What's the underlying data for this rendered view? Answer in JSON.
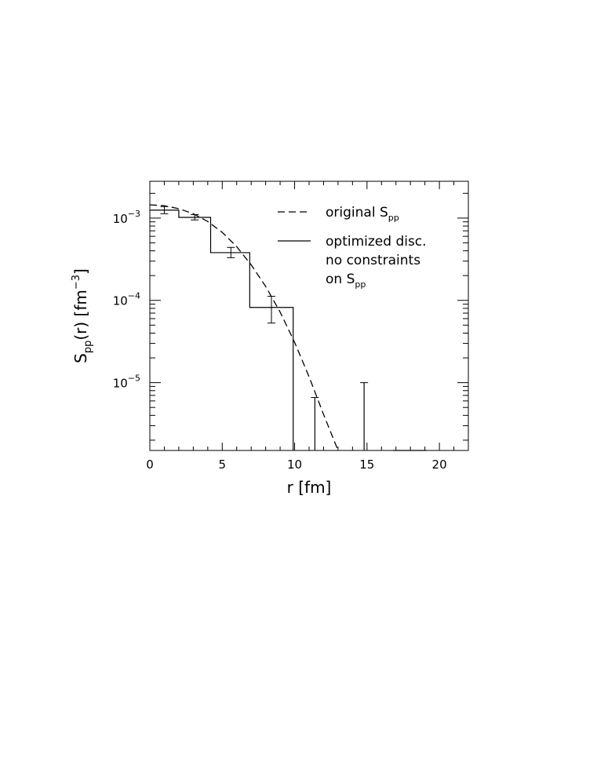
{
  "chart_data": {
    "type": "line",
    "xlabel": "r [fm]",
    "ylabel": {
      "base": "S",
      "sub": "pp",
      "rest": "(r) [fm",
      "sup": "−3",
      "close": "]"
    },
    "xlim": [
      0,
      22
    ],
    "ylim": [
      1.5e-06,
      0.0028
    ],
    "yscale": "log",
    "x_ticks": [
      {
        "value": 0,
        "label": "0"
      },
      {
        "value": 5,
        "label": "5"
      },
      {
        "value": 10,
        "label": "10"
      },
      {
        "value": 15,
        "label": "15"
      },
      {
        "value": 20,
        "label": "20"
      }
    ],
    "y_ticks": [
      {
        "value": 0.001,
        "base": "10",
        "exp": "−3"
      },
      {
        "value": 0.0001,
        "base": "10",
        "exp": "−4"
      },
      {
        "value": 1e-05,
        "base": "10",
        "exp": "−5"
      }
    ],
    "legend": {
      "position": "top-right",
      "entries": [
        {
          "style": "dashed",
          "text": "original S",
          "sub": "pp"
        },
        {
          "style": "solid",
          "lines": [
            {
              "text": "optimized disc."
            },
            {
              "text": "no constraints"
            },
            {
              "text": "on S",
              "sub": "pp"
            }
          ]
        }
      ]
    },
    "series": [
      {
        "style": "dashed",
        "x": [
          0,
          1,
          2,
          3,
          4,
          5,
          6,
          7,
          8,
          9,
          10,
          11,
          12,
          13
        ],
        "y": [
          0.00145,
          0.00141,
          0.0013,
          0.00113,
          0.00091,
          0.00067,
          0.00045,
          0.00027,
          0.000148,
          7.2e-05,
          3.1e-05,
          1.18e-05,
          4.1e-06,
          1.5e-06
        ]
      },
      {
        "style": "solid-step",
        "bins": [
          {
            "x0": 0,
            "x1": 2.0,
            "y": 0.00125
          },
          {
            "x0": 2.0,
            "x1": 4.2,
            "y": 0.00102
          },
          {
            "x0": 4.2,
            "x1": 6.9,
            "y": 0.00038
          },
          {
            "x0": 6.9,
            "x1": 9.9,
            "y": 8.2e-05
          },
          {
            "x0": 11.4,
            "x1": 11.4,
            "y": 6.6e-06
          },
          {
            "x0": 14.8,
            "x1": 14.8,
            "y": 1e-05
          },
          {
            "x0": 16.8,
            "x1": 19.1,
            "y": 1.5e-06
          }
        ],
        "error_bars": [
          {
            "x": 1.0,
            "lo": 0.00113,
            "hi": 0.00138
          },
          {
            "x": 3.1,
            "lo": 0.00095,
            "hi": 0.0011
          },
          {
            "x": 5.6,
            "lo": 0.00033,
            "hi": 0.00044
          },
          {
            "x": 8.4,
            "lo": 5.3e-05,
            "hi": 0.000112
          },
          {
            "x": 11.4,
            "lo": 1.5e-06,
            "hi": 6.6e-06
          },
          {
            "x": 14.8,
            "lo": 1.5e-06,
            "hi": 1e-05
          }
        ]
      }
    ]
  }
}
